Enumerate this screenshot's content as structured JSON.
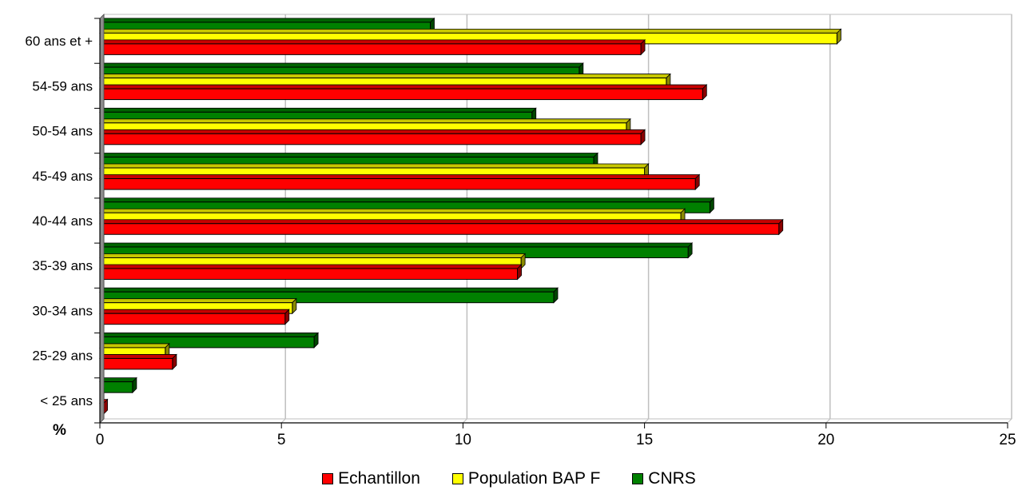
{
  "chart_data": {
    "type": "bar",
    "orientation": "horizontal",
    "categories": [
      "< 25 ans",
      "25-29 ans",
      "30-34 ans",
      "35-39 ans",
      "40-44 ans",
      "45-49 ans",
      "50-54 ans",
      "54-59 ans",
      "60 ans et +"
    ],
    "series": [
      {
        "name": "Echantillon",
        "color": "#ff0000",
        "values": [
          0.1,
          2.0,
          5.1,
          11.5,
          18.7,
          16.4,
          14.9,
          16.6,
          14.9
        ]
      },
      {
        "name": "Population BAP F",
        "color": "#ffff00",
        "values": [
          0.0,
          1.8,
          5.3,
          11.6,
          16.0,
          15.0,
          14.5,
          15.6,
          20.3
        ]
      },
      {
        "name": "CNRS",
        "color": "#008000",
        "values": [
          0.9,
          5.9,
          12.5,
          16.2,
          16.8,
          13.6,
          11.9,
          13.2,
          9.1
        ]
      }
    ],
    "xlim": [
      0,
      25
    ],
    "xticks": [
      "0",
      "5",
      "10",
      "15",
      "20",
      "25"
    ],
    "unit_label": "%",
    "grid": true,
    "legend_position": "bottom"
  }
}
